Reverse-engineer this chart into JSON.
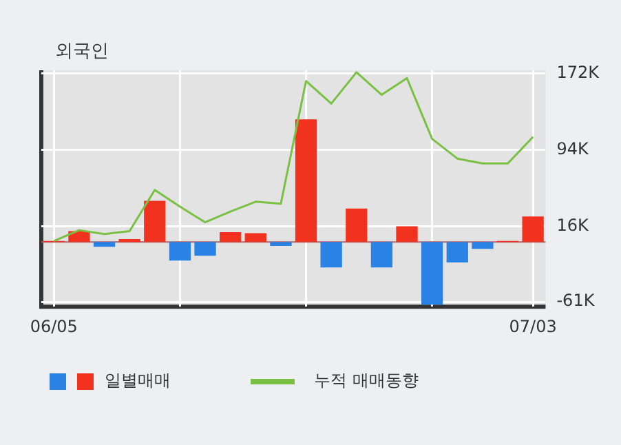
{
  "chart_data": {
    "type": "bar",
    "title": "외국인",
    "categories": [
      "06/05",
      null,
      null,
      null,
      null,
      null,
      null,
      null,
      null,
      null,
      null,
      null,
      null,
      null,
      null,
      null,
      null,
      null,
      null,
      "07/03"
    ],
    "series": [
      {
        "name": "일별매매",
        "colors": [
          "#f0321e",
          "#f0321e",
          "#2a82e4",
          "#f0321e",
          "#f0321e",
          "#2a82e4",
          "#2a82e4",
          "#f0321e",
          "#f0321e",
          "#2a82e4",
          "#f0321e",
          "#2a82e4",
          "#f0321e",
          "#2a82e4",
          "#f0321e",
          "#2a82e4",
          "#2a82e4",
          "#2a82e4",
          "#f0321e",
          "#f0321e"
        ],
        "values": [
          1,
          11,
          -5,
          3,
          42,
          -19,
          -14,
          10,
          9,
          -4,
          125,
          -26,
          34,
          -26,
          16,
          -64,
          -21,
          -7,
          1,
          26
        ]
      },
      {
        "name": "누적 매매동향",
        "type": "line",
        "color": "#7ac143",
        "values": [
          1,
          12,
          8,
          11,
          53,
          36,
          20,
          31,
          41,
          39,
          164,
          141,
          173,
          150,
          167,
          105,
          85,
          80,
          80,
          107
        ]
      }
    ],
    "ylim": [
      -66,
      175
    ],
    "yticks": [
      {
        "value": 172,
        "label": "172K"
      },
      {
        "value": 94,
        "label": "94K"
      },
      {
        "value": 16,
        "label": "16K"
      },
      {
        "value": -61,
        "label": "-61K"
      }
    ],
    "ref_lines": [
      {
        "axis": "y",
        "value": 0,
        "color": "#b06060"
      }
    ],
    "grid": true,
    "legend": "bottom"
  }
}
